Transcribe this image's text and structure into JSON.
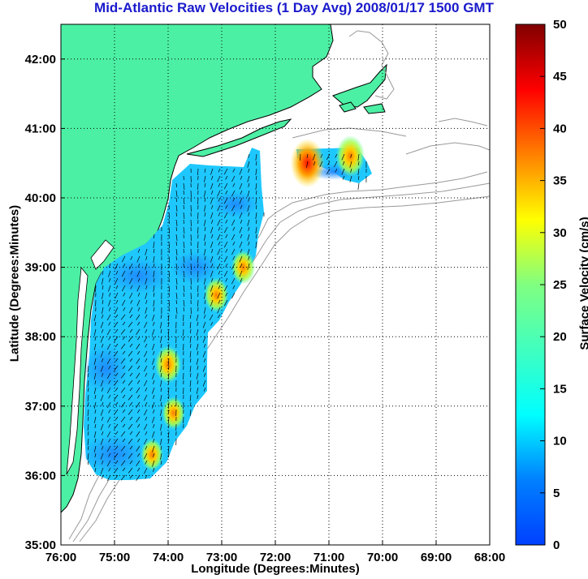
{
  "title": "Mid-Atlantic Raw Velocities (1 Day Avg) 2008/01/17 1500 GMT",
  "xlabel": "Longitude (Degrees:Minutes)",
  "ylabel": "Latitude (Degrees:Minutes)",
  "colorbar_label": "Surface Velocity (cm/s)",
  "colors": {
    "land": "#4cf0a4",
    "coast": "#000000",
    "bathymetry": "#999999",
    "title": "#1a1acc"
  },
  "chart_data": {
    "type": "heatmap",
    "x_ticks": [
      "76:00",
      "75:00",
      "74:00",
      "73:00",
      "72:00",
      "71:00",
      "70:00",
      "69:00",
      "68:00"
    ],
    "y_ticks": [
      "35:00",
      "36:00",
      "37:00",
      "38:00",
      "39:00",
      "40:00",
      "41:00",
      "42:00"
    ],
    "xlim": [
      -76,
      -68
    ],
    "ylim": [
      35,
      42.5
    ],
    "grid": true,
    "colorbar": {
      "ticks": [
        "0",
        "5",
        "10",
        "15",
        "20",
        "25",
        "30",
        "35",
        "40",
        "45",
        "50"
      ],
      "range": [
        0,
        50
      ],
      "colormap": "jet"
    },
    "hotspots": [
      {
        "lon": -74.0,
        "lat": 37.6,
        "speed": 28
      },
      {
        "lon": -73.1,
        "lat": 38.6,
        "speed": 25
      },
      {
        "lon": -72.6,
        "lat": 39.0,
        "speed": 24
      },
      {
        "lon": -73.9,
        "lat": 36.9,
        "speed": 23
      },
      {
        "lon": -74.3,
        "lat": 36.3,
        "speed": 22
      },
      {
        "lon": -71.4,
        "lat": 40.5,
        "speed": 40
      },
      {
        "lon": -70.6,
        "lat": 40.6,
        "speed": 32
      }
    ]
  }
}
